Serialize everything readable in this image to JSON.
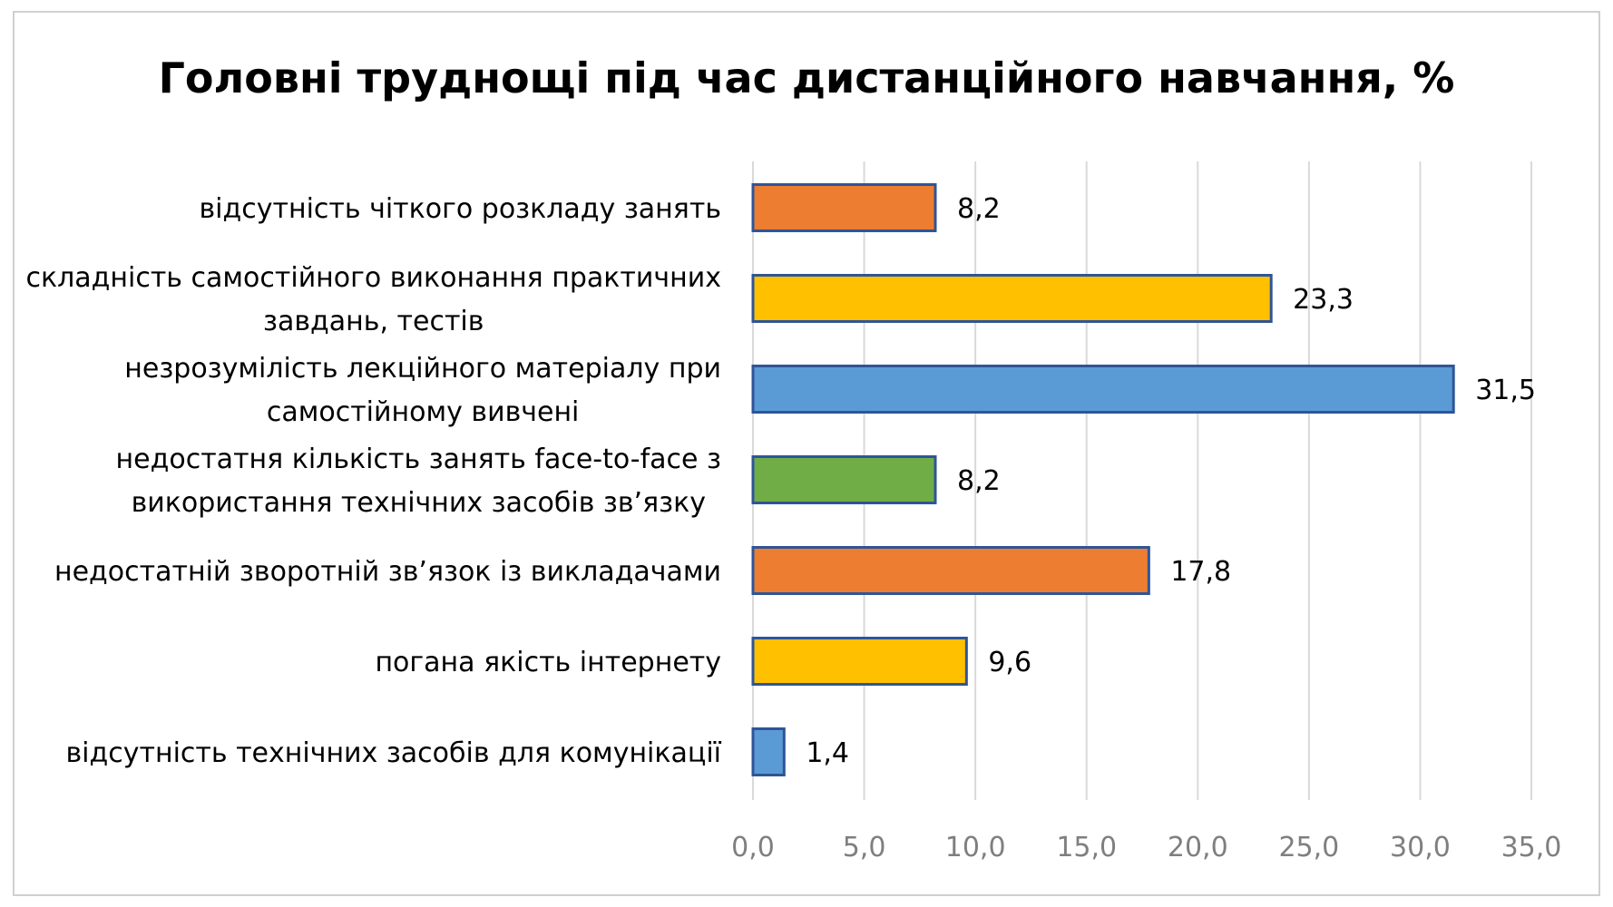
{
  "chart_data": {
    "type": "bar",
    "orientation": "horizontal",
    "title": "Головні труднощі під час дистанційного навчання, %",
    "categories": [
      [
        "відсутність чіткого розкладу занять"
      ],
      [
        "складність самостійного виконання практичних",
        "завдань, тестів"
      ],
      [
        "незрозумілість лекційного матеріалу при",
        "самостійному вивчені"
      ],
      [
        "недостатня кількість занять face-to-face з",
        "використання технічних засобів зв’язку"
      ],
      [
        "недостатній зворотній зв’язок із викладачами"
      ],
      [
        "погана якість інтернету"
      ],
      [
        "відсутність технічних засобів для комунікації"
      ]
    ],
    "values": [
      8.2,
      23.3,
      31.5,
      8.2,
      17.8,
      9.6,
      1.4
    ],
    "value_labels": [
      "8,2",
      "23,3",
      "31,5",
      "8,2",
      "17,8",
      "9,6",
      "1,4"
    ],
    "bar_colors": [
      "#ED7D31",
      "#FFC000",
      "#5B9BD5",
      "#70AD47",
      "#ED7D31",
      "#FFC000",
      "#5B9BD5"
    ],
    "bar_outline": "#2F5597",
    "xlim": [
      0,
      35
    ],
    "x_ticks": [
      0,
      5,
      10,
      15,
      20,
      25,
      30,
      35
    ],
    "x_tick_labels": [
      "0,0",
      "5,0",
      "10,0",
      "15,0",
      "20,0",
      "25,0",
      "30,0",
      "35,0"
    ],
    "grid": true,
    "legend": "none",
    "xlabel": "",
    "ylabel": ""
  }
}
